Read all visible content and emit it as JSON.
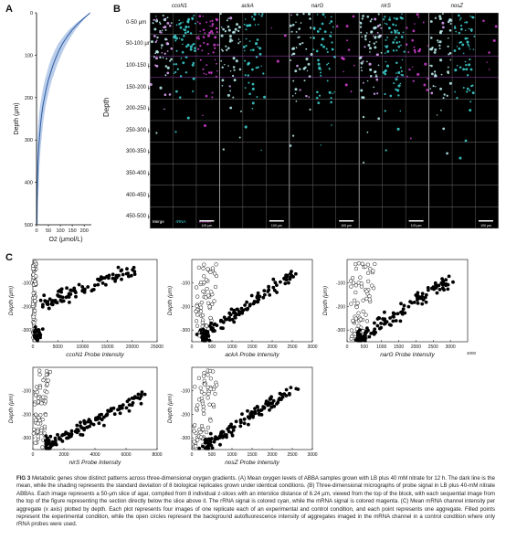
{
  "panels": {
    "a": {
      "letter": "A",
      "ylabel": "Depth (μm)",
      "xlabel": "O2 (μmol/L)"
    },
    "b": {
      "letter": "B",
      "genes": [
        "ccoN1",
        "ackA",
        "narG",
        "nirS",
        "nosZ"
      ],
      "depth_label": "Depth",
      "row_labels": [
        "0-50 μm",
        "50-100 μm",
        "100-150 μm",
        "150-200 μm",
        "200-250 μm",
        "250-300 μm",
        "300-350 μm",
        "350-400 μm",
        "400-450 μm",
        "450-500 μm"
      ],
      "legend": {
        "merge": "Merge",
        "rrna": "rRNA",
        "mrna": "mRNA"
      },
      "scalebar": "100 μm",
      "colors": {
        "rrna": "#3fd6d6",
        "mrna": "#d63fd6",
        "grid": "#7a7a7a"
      }
    },
    "c": {
      "letter": "C",
      "ylabel": "Depth (μm)"
    }
  },
  "chart_data": [
    {
      "type": "line",
      "id": "A",
      "xlabel": "O2 (μmol/L)",
      "ylabel": "Depth (μm)",
      "xlim": [
        0,
        230
      ],
      "ylim": [
        0,
        500
      ],
      "y_inverted": true,
      "xticks": [
        0,
        50,
        100,
        150,
        200
      ],
      "xtick_labels": [
        "0",
        "50",
        "100",
        "150",
        "200"
      ],
      "yticks": [
        0,
        100,
        200,
        300,
        400,
        500
      ],
      "series": [
        {
          "x": [
            225,
            200,
            175,
            150,
            130,
            110,
            95,
            82,
            70,
            60,
            50,
            42,
            35,
            28,
            22,
            17,
            13,
            9,
            6,
            4,
            2,
            1
          ],
          "y": [
            0,
            12,
            25,
            40,
            55,
            72,
            88,
            105,
            122,
            140,
            158,
            176,
            195,
            215,
            238,
            262,
            290,
            320,
            355,
            395,
            445,
            500
          ],
          "sd": [
            0,
            6,
            10,
            14,
            16,
            18,
            18,
            18,
            17,
            16,
            15,
            14,
            13,
            12,
            11,
            10,
            9,
            8,
            7,
            6,
            5,
            4
          ]
        }
      ],
      "colors": {
        "line": "#2c5aa0",
        "band": "#b9cdea"
      }
    },
    {
      "type": "scatter",
      "id": "ccoN1",
      "xlabel": "ccoN1 Probe Intensity",
      "ylabel": "Depth (μm)",
      "xlim": [
        0,
        25000
      ],
      "xticks": [
        0,
        5000,
        10000,
        15000,
        20000,
        25000
      ],
      "xtick_labels": [
        "0",
        "5000",
        "10000",
        "15000",
        "20000",
        "25000"
      ],
      "ylim": [
        -350,
        0
      ],
      "yticks": [
        -300,
        -200,
        -100
      ],
      "ytick_labels": [
        "-300",
        "-200",
        "-100"
      ],
      "exp_trend": {
        "x0": 2000,
        "x1": 20000,
        "y0": -190,
        "y1": -45,
        "y_far": -320,
        "x_far": 300
      },
      "ctrl_range": [
        0,
        700
      ]
    },
    {
      "type": "scatter",
      "id": "ackA",
      "xlabel": "ackA Probe Intensity",
      "ylabel": "Depth (μm)",
      "xlim": [
        0,
        3000
      ],
      "xticks": [
        0,
        500,
        1000,
        1500,
        2000,
        2500,
        3000
      ],
      "xtick_labels": [
        "0",
        "500",
        "1000",
        "1500",
        "2000",
        "2500",
        "3000"
      ],
      "ylim": [
        -350,
        0
      ],
      "yticks": [
        -300,
        -200,
        -100
      ],
      "ytick_labels": [
        "-300",
        "-200",
        "-100"
      ],
      "exp_trend": {
        "x0": 250,
        "x1": 2500,
        "y0": -330,
        "y1": -60,
        "y_far": -330,
        "x_far": 250
      },
      "ctrl_range": [
        100,
        700
      ]
    },
    {
      "type": "scatter",
      "id": "narG",
      "xlabel": "narG Probe Intensity",
      "ylabel": "Depth (μm)",
      "xlim": [
        0,
        3500
      ],
      "xticks": [
        0,
        500,
        1000,
        1500,
        2000,
        2500,
        3000
      ],
      "xtick_labels": [
        "0",
        "500",
        "1000",
        "1500",
        "2000",
        "2500",
        "3000"
      ],
      "extra_label": "4000",
      "ylim": [
        -350,
        0
      ],
      "yticks": [
        -300,
        -200,
        -100
      ],
      "ytick_labels": [
        "-300",
        "-200",
        "-100"
      ],
      "exp_trend": {
        "x0": 400,
        "x1": 3000,
        "y0": -330,
        "y1": -80,
        "y_far": -330,
        "x_far": 300
      },
      "ctrl_range": [
        100,
        900
      ]
    },
    {
      "type": "scatter",
      "id": "nirS",
      "xlabel": "nirS Probe Intensity",
      "ylabel": "Depth (μm)",
      "xlim": [
        0,
        8000
      ],
      "xticks": [
        0,
        2000,
        4000,
        6000,
        8000
      ],
      "xtick_labels": [
        "0",
        "2000",
        "4000",
        "6000",
        "8000"
      ],
      "ylim": [
        -350,
        0
      ],
      "yticks": [
        -300,
        -200,
        -100
      ],
      "ytick_labels": [
        "-300",
        "-200",
        "-100"
      ],
      "exp_trend": {
        "x0": 800,
        "x1": 7000,
        "y0": -340,
        "y1": -120,
        "y_far": -330,
        "x_far": 800
      },
      "ctrl_range": [
        0,
        1200
      ]
    },
    {
      "type": "scatter",
      "id": "nosZ",
      "xlabel": "nosZ Probe Intensity",
      "ylabel": "Depth (μm)",
      "xlim": [
        0,
        3000
      ],
      "xticks": [
        0,
        500,
        1000,
        1500,
        2000,
        2500,
        3000
      ],
      "xtick_labels": [
        "0",
        "500",
        "1000",
        "1500",
        "2000",
        "2500",
        "3000"
      ],
      "ylim": [
        -350,
        0
      ],
      "yticks": [
        -300,
        -200,
        -100
      ],
      "ytick_labels": [
        "-300",
        "-200",
        "-100"
      ],
      "exp_trend": {
        "x0": 300,
        "x1": 2600,
        "y0": -340,
        "y1": -80,
        "y_far": -330,
        "x_far": 300
      },
      "ctrl_range": [
        50,
        700
      ]
    }
  ],
  "caption": {
    "label": "FIG 3",
    "text": "Metabolic genes show distinct patterns across three-dimensional oxygen gradients. (A) Mean oxygen levels of ABBA samples grown with LB plus 40 mM nitrate for 12 h. The dark line is the mean, while the shading represents the standard deviation of 8 biological replicates grown under identical conditions. (B) Three-dimensional micrographs of probe signal in LB plus 40-mM nitrate ABBAs. Each image represents a 50-μm slice of agar, compiled from 8 individual z-slices with an interslice distance of 6.24 μm, viewed from the top of the block, with each sequential image from the top of the figure representing the section directly below the slice above it. The rRNA signal is colored cyan, while the mRNA signal is colored magenta. (C) Mean mRNA channel intensity per aggregate (x axis) plotted by depth. Each plot represents four images of one replicate each of an experimental and control condition, and each point represents one aggregate. Filled points represent the experimental condition, while the open circles represent the background autofluorescence intensity of aggregates imaged in the mRNA channel in a control condition where only rRNA probes were used."
  }
}
